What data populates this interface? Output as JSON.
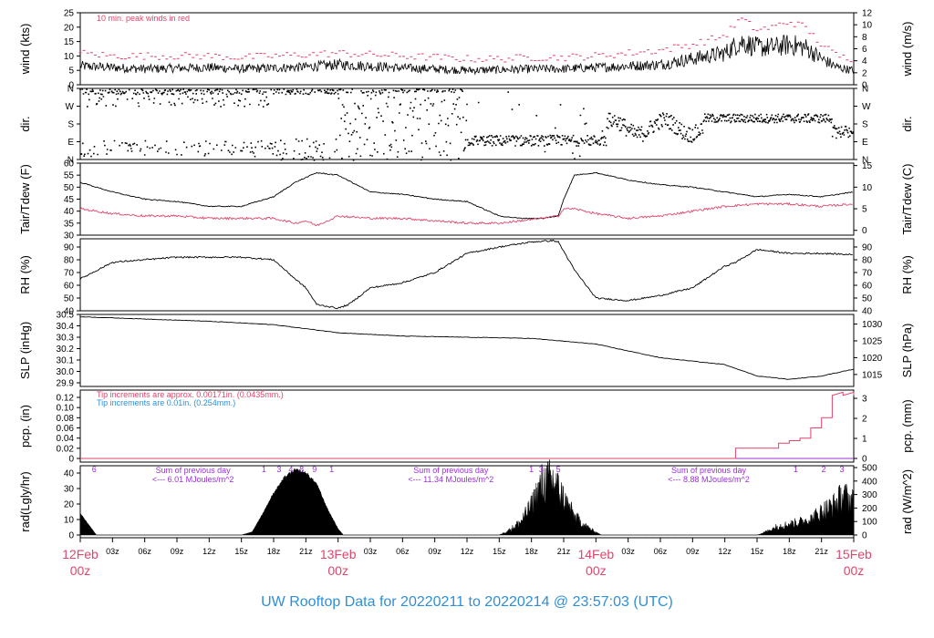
{
  "colors": {
    "peak": "#e0456b",
    "rain1": "#e0456b",
    "rain2": "#2e8fd9",
    "purple": "#9b30d9",
    "day": "#e0456b",
    "title": "#2e8fd9",
    "black": "#000000"
  },
  "title": "UW Rooftop Data for 20220211  to  20220214 @ 23:57:03  (UTC)",
  "x_axis": {
    "hours_total": 72,
    "minor_labels": [
      "03z",
      "06z",
      "09z",
      "12z",
      "15z",
      "18z",
      "21z",
      "03z",
      "06z",
      "09z",
      "12z",
      "15z",
      "18z",
      "21z",
      "03z",
      "06z",
      "09z",
      "12z",
      "15z",
      "18z",
      "21z"
    ],
    "day_labels": [
      {
        "hour": 0,
        "l1": "12Feb",
        "l2": "00z"
      },
      {
        "hour": 24,
        "l1": "13Feb",
        "l2": "00z"
      },
      {
        "hour": 48,
        "l1": "14Feb",
        "l2": "00z"
      },
      {
        "hour": 72,
        "l1": "15Feb",
        "l2": "00z"
      }
    ]
  },
  "panels": {
    "wind": {
      "left_label": "wind (kts)",
      "right_label": "wind (m/s)",
      "note": "10 min. peak winds in red",
      "left_ticks": [
        "0",
        "5",
        "10",
        "15",
        "20",
        "25"
      ],
      "right_ticks": [
        "0",
        "2",
        "4",
        "6",
        "8",
        "10",
        "12"
      ]
    },
    "dir": {
      "left_label": "dir.",
      "right_label": "dir.",
      "ticks": [
        "N",
        "E",
        "S",
        "W",
        "N"
      ]
    },
    "temp": {
      "left_label": "Tair/Tdew (F)",
      "right_label": "Tair/Tdew (C)",
      "left_ticks": [
        "30",
        "35",
        "40",
        "45",
        "50",
        "55",
        "60"
      ],
      "right_ticks": [
        "0",
        "5",
        "10",
        "15"
      ]
    },
    "rh": {
      "left_label": "RH (%)",
      "right_label": "RH (%)",
      "left_ticks": [
        "40",
        "50",
        "60",
        "70",
        "80",
        "90"
      ],
      "right_ticks": [
        "40",
        "50",
        "60",
        "70",
        "80",
        "90"
      ]
    },
    "slp": {
      "left_label": "SLP (inHg)",
      "right_label": "SLP (hPa)",
      "left_ticks": [
        "29.9",
        "30.0",
        "30.1",
        "30.2",
        "30.3",
        "30.4",
        "30.5"
      ],
      "right_ticks": [
        "1015",
        "1020",
        "1025",
        "1030"
      ]
    },
    "pcp": {
      "left_label": "pcp. (in)",
      "right_label": "pcp. (mm)",
      "note1": "Tip increments are approx. 0.00171in. (0.0435mm.)",
      "note2": "Tip increments are 0.01in. (0.254mm.)",
      "left_ticks": [
        "0",
        "0.02",
        "0.04",
        "0.06",
        "0.08",
        "0.10",
        "0.12"
      ],
      "right_ticks": [
        "0",
        "1",
        "2",
        "3"
      ]
    },
    "rad": {
      "left_label": "rad(Lgly/hr)",
      "right_label": "rad (W/m^2)",
      "left_ticks": [
        "0",
        "10",
        "20",
        "30",
        "40"
      ],
      "right_ticks": [
        "0",
        "100",
        "200",
        "300",
        "400",
        "500"
      ],
      "sums": [
        {
          "hour": 10.5,
          "line1": "Sum of previous day",
          "line2": "<--- 6.01 MJoules/m^2"
        },
        {
          "hour": 34.5,
          "line1": "Sum of previous day",
          "line2": "<--- 11.34 MJoules/m^2"
        },
        {
          "hour": 58.5,
          "line1": "Sum of previous day",
          "line2": "<--- 8.88 MJoules/m^2"
        }
      ],
      "top_marks": [
        {
          "hour": 1.3,
          "t": "6"
        },
        {
          "hour": 17.1,
          "t": "1"
        },
        {
          "hour": 18.5,
          "t": "3"
        },
        {
          "hour": 19.6,
          "t": "4"
        },
        {
          "hour": 20.6,
          "t": "8"
        },
        {
          "hour": 21.8,
          "t": "9"
        },
        {
          "hour": 23.4,
          "t": "1"
        },
        {
          "hour": 42.0,
          "t": "1"
        },
        {
          "hour": 42.9,
          "t": "3"
        },
        {
          "hour": 44.5,
          "t": "5"
        },
        {
          "hour": 66.6,
          "t": "1"
        },
        {
          "hour": 69.2,
          "t": "2"
        },
        {
          "hour": 70.9,
          "t": "3"
        }
      ]
    }
  },
  "chart_data": [
    {
      "type": "line",
      "title": "",
      "ylabel": "wind (kts)",
      "ylim": [
        0,
        25
      ],
      "note": "10 min. peak winds in red",
      "x_hours_since": "12Feb 00z",
      "x": [
        0,
        3,
        6,
        9,
        12,
        15,
        18,
        21,
        24,
        27,
        30,
        33,
        36,
        39,
        42,
        45,
        48,
        51,
        54,
        57,
        60,
        61.5,
        63,
        64.5,
        66,
        67.5,
        69,
        70.5,
        72
      ],
      "series": [
        {
          "values": [
            6.5,
            6,
            5.5,
            5.8,
            6,
            5.5,
            5.8,
            6.2,
            7,
            6.5,
            5.8,
            5.5,
            5,
            5.2,
            5.5,
            5.5,
            6,
            6.5,
            7,
            9,
            11,
            15,
            13,
            13,
            14,
            13,
            9,
            6,
            5
          ]
        },
        {
          "values": [
            11,
            10,
            10,
            10,
            10,
            9.5,
            10,
            10.5,
            11,
            10.5,
            10,
            9.5,
            9,
            9,
            9.5,
            9.5,
            10,
            11,
            12,
            14,
            17,
            23,
            19,
            20,
            22,
            20,
            14,
            10,
            9
          ]
        }
      ]
    },
    {
      "type": "scatter",
      "title": "",
      "ylabel": "dir.",
      "categories": [
        "N",
        "E",
        "S",
        "W",
        "N"
      ],
      "x_hours": [
        [
          0,
          18
        ],
        [
          18,
          24
        ],
        [
          24,
          33
        ],
        [
          33,
          36
        ],
        [
          36,
          49
        ],
        [
          49,
          58
        ],
        [
          58,
          72
        ]
      ],
      "direction": [
        "N/E/W mixed",
        "N (variable)",
        "variable",
        "variable",
        "E",
        "SE to S",
        "S (E at end)"
      ]
    },
    {
      "type": "line",
      "title": "",
      "ylabel": "Tair/Tdew (F)",
      "ylim": [
        30,
        60
      ],
      "x": [
        0,
        3,
        6,
        9,
        12,
        15,
        18,
        20,
        21,
        22,
        24,
        27,
        30,
        33,
        36,
        39,
        41,
        43,
        44.5,
        45,
        46,
        48,
        51,
        54,
        57,
        60,
        63,
        66,
        69,
        72
      ],
      "series": [
        {
          "values": [
            52,
            48,
            45,
            44,
            42,
            42,
            46,
            52,
            54,
            56,
            55,
            48,
            47,
            45,
            44,
            38,
            37,
            37,
            38,
            45,
            55,
            56,
            53,
            51,
            50,
            48,
            46,
            47,
            46,
            48
          ]
        },
        {
          "values": [
            41,
            39,
            38,
            38,
            37,
            37,
            37,
            35,
            36,
            34,
            38,
            37,
            37,
            36,
            35,
            35,
            36,
            37,
            38,
            41,
            41,
            39,
            37,
            38,
            40,
            42,
            43,
            43,
            42,
            43
          ]
        }
      ]
    },
    {
      "type": "line",
      "title": "",
      "ylabel": "RH (%)",
      "ylim": [
        40,
        95
      ],
      "x": [
        0,
        3,
        6,
        9,
        12,
        15,
        18,
        20,
        21,
        22,
        24,
        25,
        27,
        30,
        33,
        36,
        39,
        42,
        44,
        44.5,
        46,
        48,
        51,
        54,
        57,
        60,
        61,
        63,
        66,
        69,
        72
      ],
      "series": [
        {
          "values": [
            65,
            78,
            80,
            82,
            82,
            82,
            80,
            65,
            58,
            45,
            42,
            45,
            58,
            62,
            70,
            85,
            90,
            94,
            95,
            94,
            72,
            50,
            48,
            52,
            58,
            75,
            78,
            88,
            85,
            85,
            84
          ]
        }
      ]
    },
    {
      "type": "line",
      "title": "",
      "ylabel": "SLP (inHg)",
      "ylim": [
        29.9,
        30.5
      ],
      "x": [
        0,
        6,
        12,
        18,
        24,
        30,
        36,
        42,
        48,
        54,
        60,
        63,
        66,
        69,
        72
      ],
      "series": [
        {
          "values": [
            30.48,
            30.46,
            30.44,
            30.41,
            30.34,
            30.31,
            30.3,
            30.29,
            30.24,
            30.12,
            30.06,
            29.96,
            29.93,
            29.96,
            30.02
          ]
        }
      ]
    },
    {
      "type": "line",
      "title": "",
      "ylabel": "pcp. (in)",
      "ylim": [
        0,
        0.13
      ],
      "x": [
        0,
        60,
        61,
        63,
        65,
        66,
        67,
        68,
        69,
        70,
        71,
        72
      ],
      "series": [
        {
          "name": "Tip increments are approx. 0.00171in. (0.0435mm.)",
          "values": [
            0,
            0,
            0.02,
            0.02,
            0.03,
            0.035,
            0.04,
            0.06,
            0.08,
            0.13,
            0.13,
            0.13
          ]
        }
      ]
    },
    {
      "type": "area",
      "title": "",
      "ylabel": "rad(Lgly/hr)",
      "ylim": [
        0,
        44
      ],
      "x": [
        0,
        1.5,
        15,
        16,
        17,
        18,
        19,
        20,
        21,
        22,
        23,
        24,
        24.5,
        39,
        40,
        41,
        42,
        43,
        44,
        45,
        46,
        47,
        48,
        48.5,
        63,
        64,
        65,
        66,
        67,
        68,
        69,
        70,
        71,
        72
      ],
      "series": [
        {
          "values": [
            14,
            0,
            0,
            2,
            14,
            27,
            37,
            42,
            40,
            33,
            17,
            4,
            0,
            0,
            4,
            10,
            22,
            40,
            42,
            28,
            14,
            7,
            2,
            0,
            0,
            3,
            7,
            8,
            10,
            12,
            18,
            22,
            30,
            25
          ]
        }
      ]
    }
  ]
}
